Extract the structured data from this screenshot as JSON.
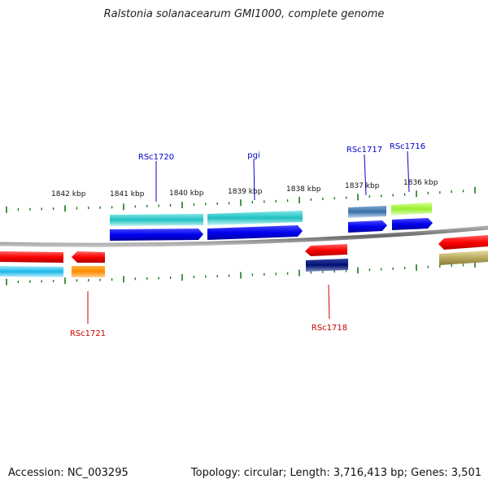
{
  "title": "Ralstonia solanacearum GMI1000, complete genome",
  "footer": {
    "accession": "Accession: NC_003295",
    "summary": "Topology: circular; Length: 3,716,413 bp; Genes: 3,501"
  },
  "colors": {
    "tick": "#1a7a1a",
    "backbone": "#777777",
    "label_top": "#0000cc",
    "label_bottom": "#cc0000"
  },
  "scale_labels": [
    "1842 kbp",
    "1841 kbp",
    "1840 kbp",
    "1839 kbp",
    "1838 kbp",
    "1837 kbp",
    "1836 kbp"
  ],
  "labels": {
    "rsc1720": "RSc1720",
    "pgi": "pgi",
    "rsc1717": "RSc1717",
    "rsc1716": "RSc1716",
    "rsc1721": "RSc1721",
    "rsc1718": "RSc1718"
  },
  "features": [
    {
      "name": "RSc1720",
      "strand": "+",
      "color": "#20c0c0"
    },
    {
      "name": "pgi",
      "strand": "+",
      "color": "#20c0c0"
    },
    {
      "name": "RSc1717",
      "strand": "+",
      "color": "#3a70a8"
    },
    {
      "name": "RSc1716",
      "strand": "+",
      "color": "#99ee33"
    },
    {
      "name": "RSc1721",
      "strand": "-",
      "color": "#ff8c00"
    },
    {
      "name": "RSc1718",
      "strand": "-",
      "color": "#001070"
    }
  ]
}
